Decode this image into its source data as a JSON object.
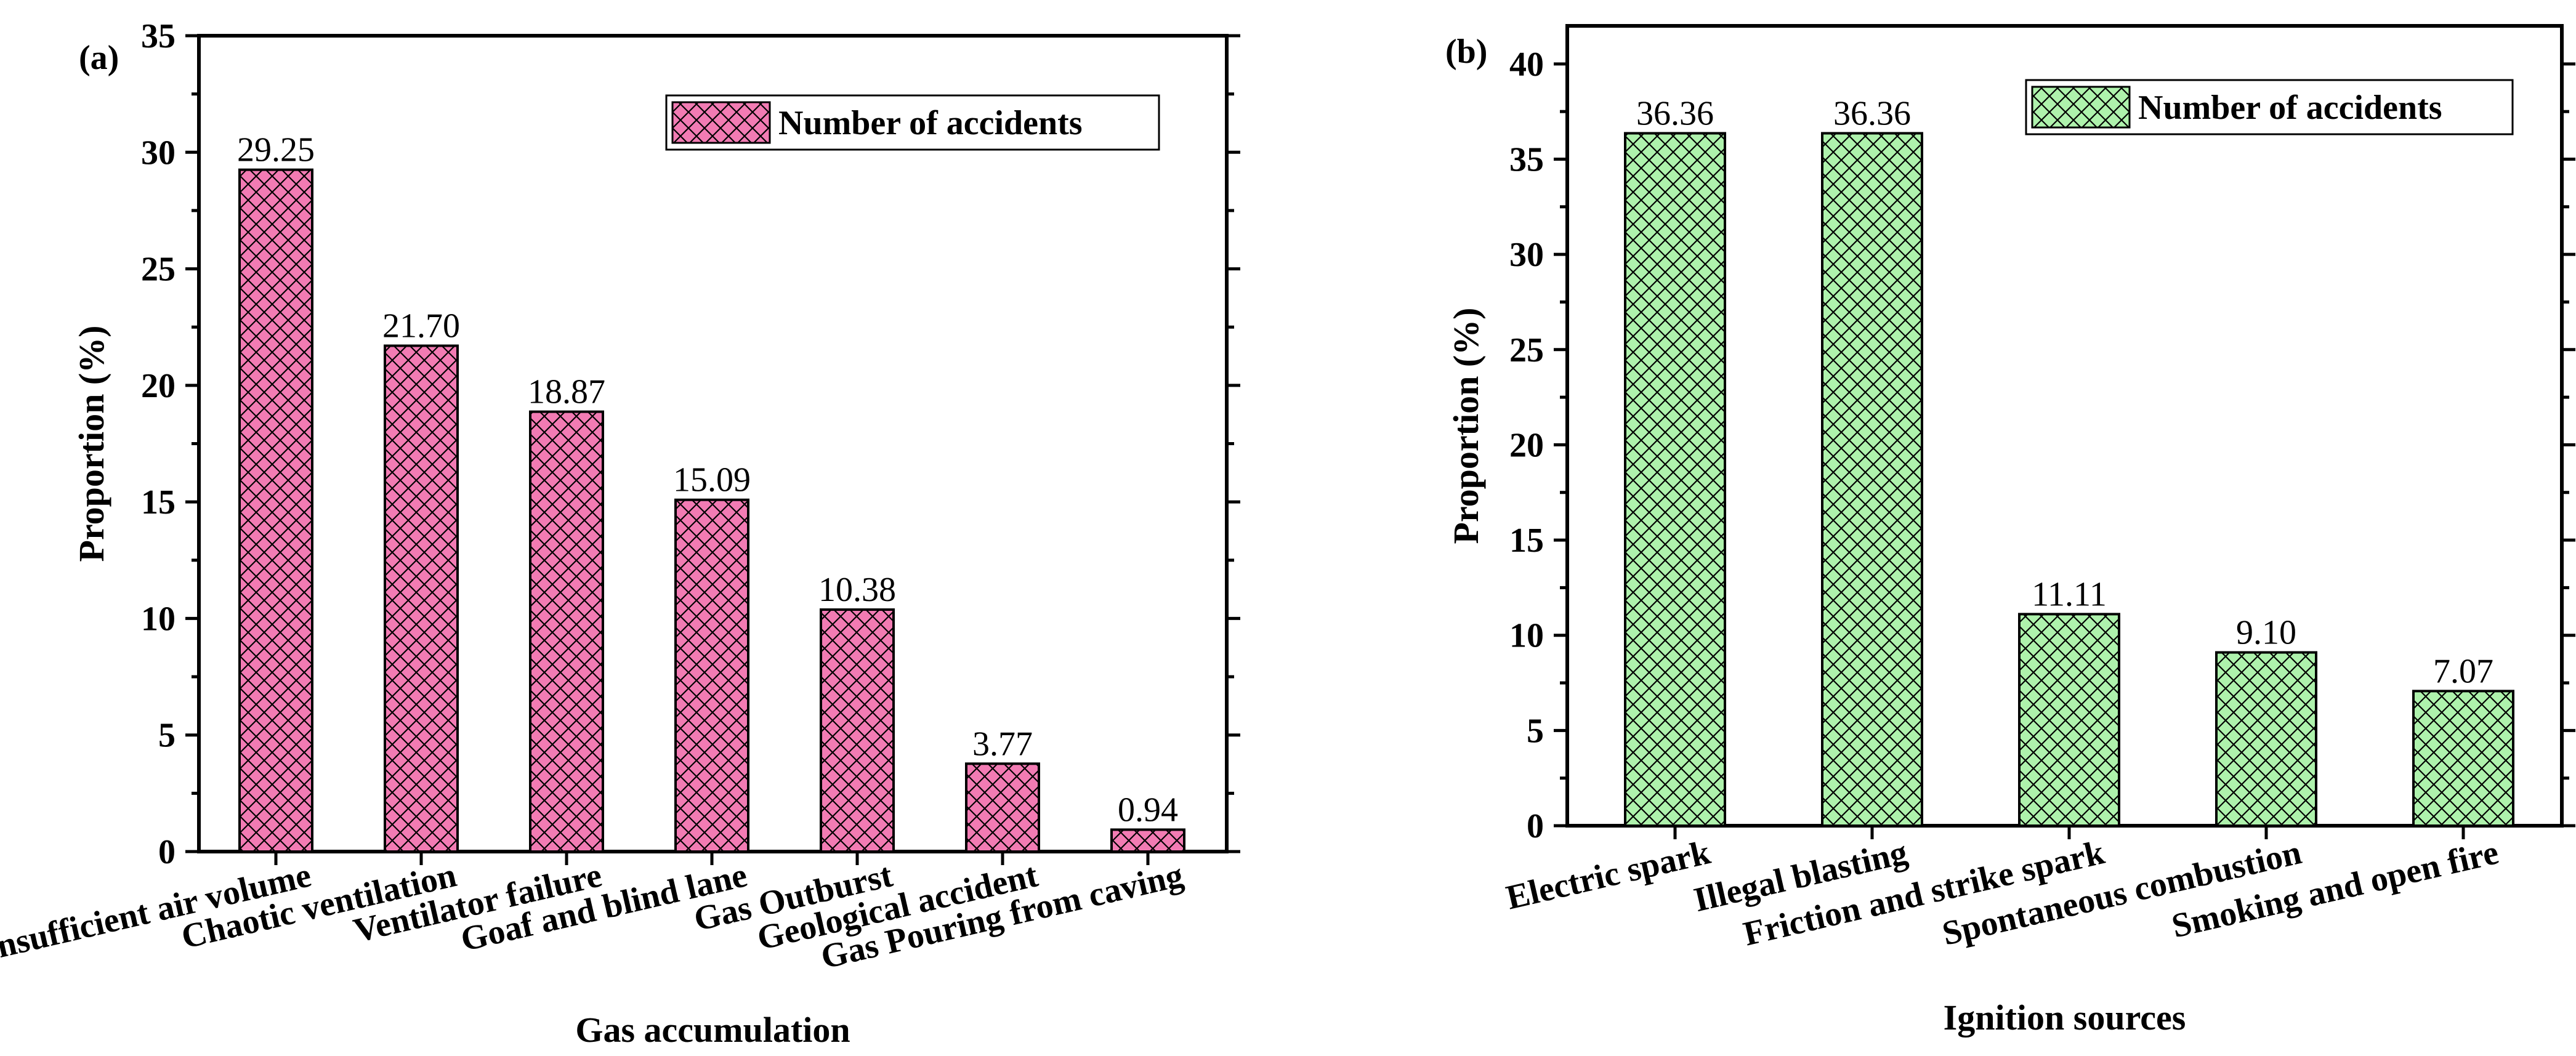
{
  "chart_data": [
    {
      "type": "bar",
      "panel_label": "(a)",
      "categories": [
        "Insufficient air volume",
        "Chaotic ventilation",
        "Ventilator failure",
        "Goaf and blind lane",
        "Gas Outburst",
        "Geological accident",
        "Gas Pouring from caving"
      ],
      "values": [
        29.25,
        21.7,
        18.87,
        15.09,
        10.38,
        3.77,
        0.94
      ],
      "value_labels": [
        "29.25",
        "21.70",
        "18.87",
        "15.09",
        "10.38",
        "3.77",
        "0.94"
      ],
      "xlabel": "Gas accumulation",
      "ylabel": "Proportion (%)",
      "ylim": [
        0,
        35
      ],
      "yticks": [
        "0",
        "5",
        "10",
        "15",
        "20",
        "25",
        "30",
        "35"
      ],
      "legend": "Number of accidents",
      "legend_position": "top-right",
      "fill_color": "#f27bb3",
      "hatch": "crosshatch"
    },
    {
      "type": "bar",
      "panel_label": "(b)",
      "categories": [
        "Electric spark",
        "Illegal blasting",
        "Friction and strike spark",
        "Spontaneous combustion",
        "Smoking and open fire"
      ],
      "values": [
        36.36,
        36.36,
        11.11,
        9.1,
        7.07
      ],
      "value_labels": [
        "36.36",
        "36.36",
        "11.11",
        "9.10",
        "7.07"
      ],
      "xlabel": "Ignition sources",
      "ylabel": "Proportion (%)",
      "ylim": [
        0,
        42
      ],
      "yticks": [
        "0",
        "5",
        "10",
        "15",
        "20",
        "25",
        "30",
        "35",
        "40"
      ],
      "legend": "Number of accidents",
      "legend_position": "top-right",
      "fill_color": "#aef2ac",
      "hatch": "crosshatch"
    }
  ]
}
